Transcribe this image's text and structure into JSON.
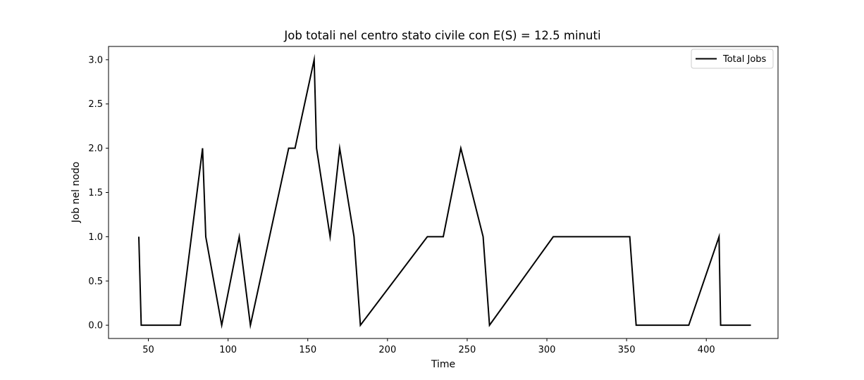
{
  "chart_data": {
    "type": "line",
    "title": "Job totali nel centro stato civile con E(S) = 12.5 minuti",
    "xlabel": "Time",
    "ylabel": "Job nel nodo",
    "xlim": [
      25,
      445
    ],
    "ylim": [
      -0.15,
      3.15
    ],
    "xticks": [
      50,
      100,
      150,
      200,
      250,
      300,
      350,
      400
    ],
    "yticks": [
      0.0,
      0.5,
      1.0,
      1.5,
      2.0,
      2.5,
      3.0
    ],
    "ytick_labels": [
      "0.0",
      "0.5",
      "1.0",
      "1.5",
      "2.0",
      "2.5",
      "3.0"
    ],
    "grid": false,
    "legend_position": "top-right",
    "series": [
      {
        "name": "Total Jobs",
        "color": "#000000",
        "x": [
          44,
          45.5,
          70,
          84,
          86,
          96,
          107,
          114,
          138,
          142,
          154,
          155.5,
          164,
          170,
          179,
          183,
          225,
          235,
          246,
          260,
          264,
          304,
          352,
          356,
          389,
          408,
          409,
          428
        ],
        "y": [
          1,
          0,
          0,
          2,
          1,
          0,
          1,
          0,
          2,
          2,
          3,
          2,
          1,
          2,
          1,
          0,
          1,
          1,
          2,
          1,
          0,
          1,
          1,
          0,
          0,
          1,
          0,
          0
        ]
      }
    ]
  }
}
